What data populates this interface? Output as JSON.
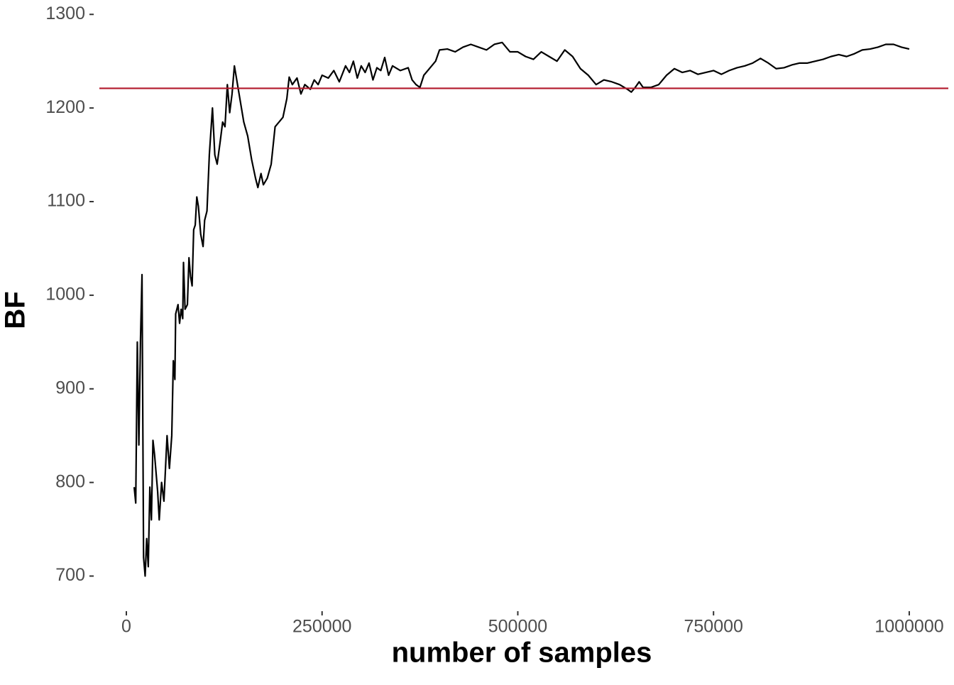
{
  "chart_data": {
    "type": "line",
    "x_label": "number of samples",
    "y_label": "BF",
    "xlim": [
      -34450,
      1049900
    ],
    "ylim": [
      664,
      1304
    ],
    "xticks": [
      0,
      250000,
      500000,
      750000,
      1000000
    ],
    "yticks": [
      700,
      800,
      900,
      1000,
      1100,
      1200,
      1300
    ],
    "grid": false,
    "hline": {
      "value": 1221,
      "color": "#b2182b"
    },
    "x": [
      10000,
      12000,
      14000,
      16000,
      18000,
      20000,
      22000,
      24000,
      26000,
      28000,
      30000,
      32000,
      34000,
      36000,
      40000,
      42000,
      45000,
      48000,
      52000,
      55000,
      58000,
      60000,
      62000,
      63000,
      66000,
      68000,
      70000,
      72000,
      73000,
      75000,
      78000,
      80000,
      82000,
      84000,
      86000,
      88000,
      90000,
      92000,
      95000,
      98000,
      100000,
      103000,
      106000,
      110000,
      113000,
      116000,
      120000,
      123000,
      126000,
      129000,
      132000,
      135000,
      138000,
      140000,
      143000,
      146000,
      150000,
      155000,
      160000,
      165000,
      168000,
      172000,
      175000,
      180000,
      185000,
      190000,
      195000,
      200000,
      205000,
      208000,
      212000,
      218000,
      223000,
      228000,
      235000,
      240000,
      245000,
      250000,
      258000,
      265000,
      272000,
      280000,
      285000,
      290000,
      295000,
      300000,
      305000,
      310000,
      315000,
      320000,
      325000,
      330000,
      335000,
      340000,
      350000,
      360000,
      365000,
      370000,
      375000,
      380000,
      390000,
      395000,
      400000,
      410000,
      420000,
      430000,
      440000,
      450000,
      460000,
      470000,
      480000,
      490000,
      500000,
      510000,
      520000,
      530000,
      540000,
      550000,
      560000,
      570000,
      580000,
      590000,
      600000,
      610000,
      620000,
      630000,
      640000,
      645000,
      650000,
      655000,
      660000,
      670000,
      680000,
      690000,
      700000,
      710000,
      720000,
      730000,
      740000,
      750000,
      760000,
      770000,
      780000,
      790000,
      800000,
      810000,
      820000,
      830000,
      840000,
      850000,
      860000,
      870000,
      880000,
      890000,
      900000,
      910000,
      920000,
      930000,
      940000,
      950000,
      960000,
      970000,
      980000,
      990000,
      1000000
    ],
    "series": [
      {
        "color": "#000000",
        "values": [
          795,
          778,
          950,
          840,
          950,
          1022,
          720,
          700,
          740,
          710,
          795,
          760,
          845,
          830,
          790,
          760,
          800,
          780,
          850,
          815,
          850,
          930,
          910,
          980,
          990,
          970,
          985,
          975,
          1035,
          985,
          990,
          1040,
          1020,
          1010,
          1070,
          1075,
          1105,
          1095,
          1065,
          1052,
          1080,
          1090,
          1150,
          1200,
          1150,
          1140,
          1165,
          1185,
          1180,
          1225,
          1195,
          1215,
          1245,
          1235,
          1220,
          1205,
          1185,
          1170,
          1145,
          1125,
          1115,
          1130,
          1118,
          1125,
          1140,
          1180,
          1185,
          1190,
          1210,
          1233,
          1225,
          1232,
          1215,
          1225,
          1220,
          1230,
          1225,
          1235,
          1232,
          1240,
          1228,
          1245,
          1238,
          1250,
          1232,
          1245,
          1238,
          1248,
          1230,
          1243,
          1240,
          1254,
          1235,
          1245,
          1240,
          1243,
          1230,
          1225,
          1222,
          1235,
          1245,
          1250,
          1262,
          1263,
          1260,
          1265,
          1268,
          1265,
          1262,
          1268,
          1270,
          1260,
          1260,
          1255,
          1252,
          1260,
          1255,
          1250,
          1262,
          1255,
          1242,
          1235,
          1225,
          1230,
          1228,
          1225,
          1220,
          1217,
          1222,
          1228,
          1222,
          1222,
          1225,
          1235,
          1242,
          1238,
          1240,
          1236,
          1238,
          1240,
          1236,
          1240,
          1243,
          1245,
          1248,
          1253,
          1248,
          1242,
          1243,
          1246,
          1248,
          1248,
          1250,
          1252,
          1255,
          1257,
          1255,
          1258,
          1262,
          1263,
          1265,
          1268,
          1268,
          1265,
          1263
        ]
      }
    ]
  }
}
